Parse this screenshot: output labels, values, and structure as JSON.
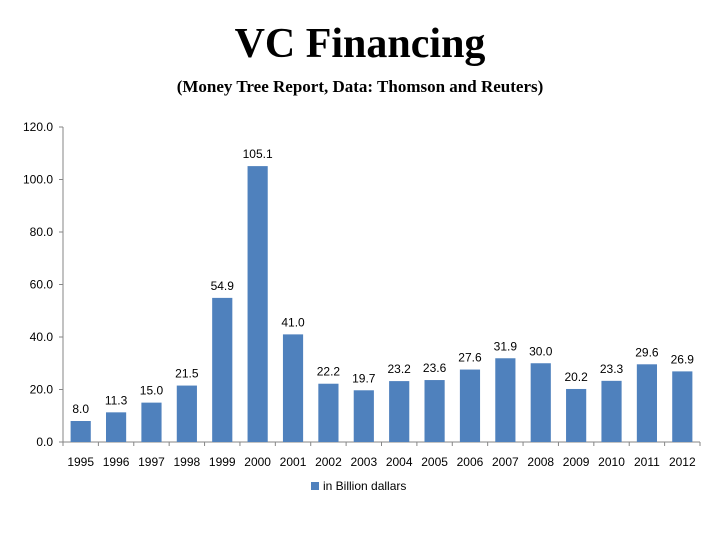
{
  "chart_data": {
    "type": "bar",
    "title": "VC Financing",
    "subtitle": "(Money Tree Report, Data: Thomson and Reuters)",
    "categories": [
      "1995",
      "1996",
      "1997",
      "1998",
      "1999",
      "2000",
      "2001",
      "2002",
      "2003",
      "2004",
      "2005",
      "2006",
      "2007",
      "2008",
      "2009",
      "2010",
      "2011",
      "2012"
    ],
    "series": [
      {
        "name": "in Billion dallars",
        "values": [
          8.0,
          11.3,
          15.0,
          21.5,
          54.9,
          105.1,
          41.0,
          22.2,
          19.7,
          23.2,
          23.6,
          27.6,
          31.9,
          30.0,
          20.2,
          23.3,
          29.6,
          26.9
        ],
        "color": "#4f81bd"
      }
    ],
    "ylim": [
      0,
      120
    ],
    "yticks": [
      "0.0",
      "20.0",
      "40.0",
      "60.0",
      "80.0",
      "100.0",
      "120.0"
    ],
    "data_labels": [
      "8.0",
      "11.3",
      "15.0",
      "21.5",
      "54.9",
      "105.1",
      "41.0",
      "22.2",
      "19.7",
      "23.2",
      "23.6",
      "27.6",
      "31.9",
      "30.0",
      "20.2",
      "23.3",
      "29.6",
      "26.9"
    ],
    "grid": false,
    "legend_position": "bottom"
  }
}
